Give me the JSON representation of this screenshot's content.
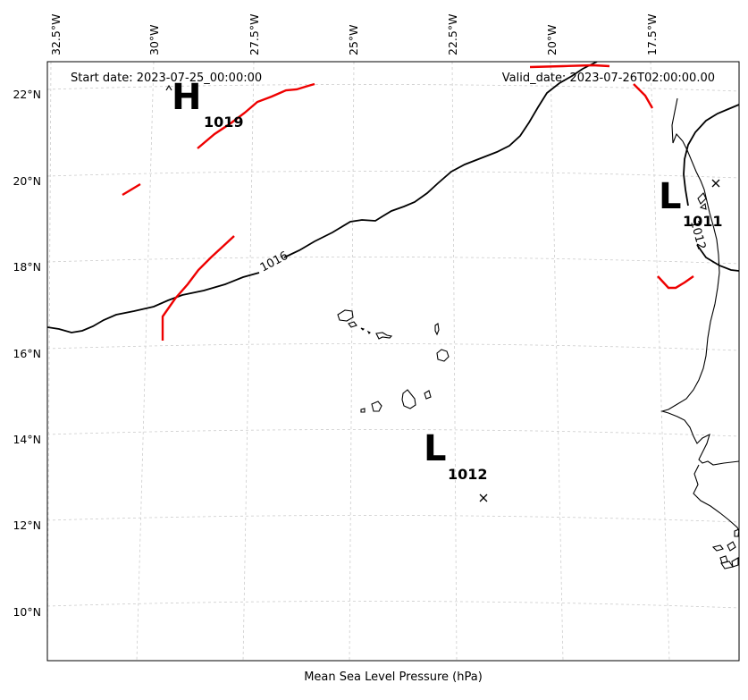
{
  "header": {
    "start_date": "Start date: 2023-07-25_00:00:00",
    "valid_date": "Valid_date: 2023-07-26T02:00:00.00"
  },
  "footer": {
    "caption": "Mean Sea Level Pressure (hPa)"
  },
  "axes": {
    "lon_labels": [
      "32.5°W",
      "30°W",
      "27.5°W",
      "25°W",
      "22.5°W",
      "20°W",
      "17.5°W"
    ],
    "lat_labels": [
      "22°N",
      "20°N",
      "18°N",
      "16°N",
      "14°N",
      "12°N",
      "10°N"
    ]
  },
  "pressure_centers": [
    {
      "type": "H",
      "value": "1019"
    },
    {
      "type": "L",
      "value": "1012"
    },
    {
      "type": "L",
      "value": "1011"
    }
  ],
  "isobar_labels": [
    "1016",
    "1012"
  ],
  "colors": {
    "front": "#ee0000",
    "isobar": "#000000",
    "grid": "#cccccc"
  }
}
